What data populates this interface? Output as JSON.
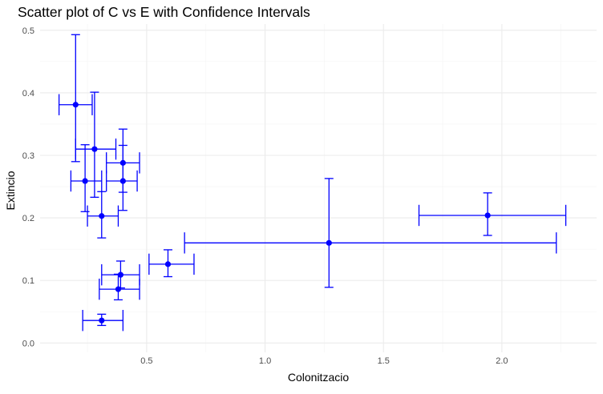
{
  "chart_data": {
    "type": "scatter",
    "title": "Scatter plot of C vs E with Confidence Intervals",
    "xlabel": "Colonitzacio",
    "ylabel": "Extincio",
    "xlim": [
      0.05,
      2.4
    ],
    "ylim": [
      -0.015,
      0.51
    ],
    "x_ticks": [
      0.5,
      1.0,
      1.5,
      2.0
    ],
    "x_tick_labels": [
      "0.5",
      "1.0",
      "1.5",
      "2.0"
    ],
    "y_ticks": [
      0.0,
      0.1,
      0.2,
      0.3,
      0.4,
      0.5
    ],
    "y_tick_labels": [
      "0.0",
      "0.1",
      "0.2",
      "0.3",
      "0.4",
      "0.5"
    ],
    "grid": true,
    "legend": "none",
    "colors": {
      "points": "#0000ff",
      "errorbars": "#0000ff",
      "grid": "#ebebeb"
    },
    "points": [
      {
        "x": 0.2,
        "y": 0.381,
        "x_low": 0.13,
        "x_high": 0.27,
        "y_low": 0.29,
        "y_high": 0.493
      },
      {
        "x": 0.28,
        "y": 0.31,
        "x_low": 0.2,
        "x_high": 0.37,
        "y_low": 0.233,
        "y_high": 0.401
      },
      {
        "x": 0.4,
        "y": 0.288,
        "x_low": 0.33,
        "x_high": 0.47,
        "y_low": 0.241,
        "y_high": 0.342
      },
      {
        "x": 0.24,
        "y": 0.259,
        "x_low": 0.18,
        "x_high": 0.31,
        "y_low": 0.21,
        "y_high": 0.317
      },
      {
        "x": 0.4,
        "y": 0.259,
        "x_low": 0.33,
        "x_high": 0.46,
        "y_low": 0.212,
        "y_high": 0.316
      },
      {
        "x": 0.31,
        "y": 0.203,
        "x_low": 0.25,
        "x_high": 0.38,
        "y_low": 0.168,
        "y_high": 0.242
      },
      {
        "x": 0.59,
        "y": 0.126,
        "x_low": 0.51,
        "x_high": 0.7,
        "y_low": 0.106,
        "y_high": 0.149
      },
      {
        "x": 0.39,
        "y": 0.109,
        "x_low": 0.31,
        "x_high": 0.47,
        "y_low": 0.088,
        "y_high": 0.131
      },
      {
        "x": 0.38,
        "y": 0.086,
        "x_low": 0.3,
        "x_high": 0.47,
        "y_low": 0.069,
        "y_high": 0.11
      },
      {
        "x": 0.31,
        "y": 0.036,
        "x_low": 0.23,
        "x_high": 0.4,
        "y_low": 0.028,
        "y_high": 0.046
      },
      {
        "x": 1.27,
        "y": 0.16,
        "x_low": 0.66,
        "x_high": 2.23,
        "y_low": 0.089,
        "y_high": 0.263
      },
      {
        "x": 1.94,
        "y": 0.204,
        "x_low": 1.65,
        "x_high": 2.27,
        "y_low": 0.172,
        "y_high": 0.24
      }
    ]
  }
}
